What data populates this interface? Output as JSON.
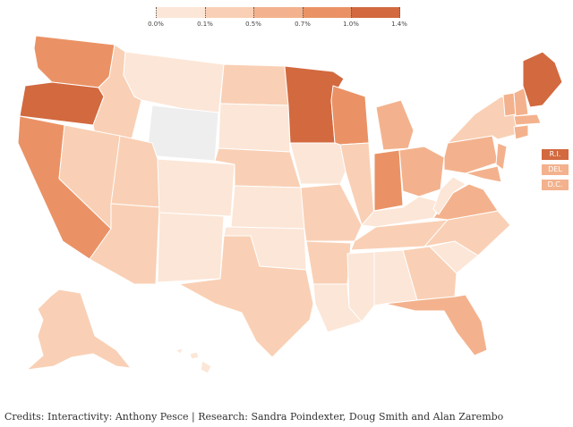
{
  "colors": {
    "no_data": "#eeeeee",
    "bins": [
      "#fce6d7",
      "#f9d0b5",
      "#f3b28d",
      "#ea9265",
      "#d2693f"
    ]
  },
  "legend": {
    "bins": [
      "0.0%",
      "0.1%",
      "0.5%",
      "0.7%",
      "1.0%",
      "1.4%"
    ]
  },
  "small_states": [
    {
      "label": "R.I.",
      "bin": 4
    },
    {
      "label": "DEL",
      "bin": 2
    },
    {
      "label": "D.C.",
      "bin": 2
    }
  ],
  "states": [
    {
      "id": "WA",
      "bin": 3
    },
    {
      "id": "OR",
      "bin": 4
    },
    {
      "id": "CA",
      "bin": 3
    },
    {
      "id": "ID",
      "bin": 1
    },
    {
      "id": "NV",
      "bin": 1
    },
    {
      "id": "MT",
      "bin": 0
    },
    {
      "id": "WY",
      "bin": -1
    },
    {
      "id": "UT",
      "bin": 1
    },
    {
      "id": "AZ",
      "bin": 1
    },
    {
      "id": "CO",
      "bin": 0
    },
    {
      "id": "NM",
      "bin": 0
    },
    {
      "id": "ND",
      "bin": 1
    },
    {
      "id": "SD",
      "bin": 0
    },
    {
      "id": "NE",
      "bin": 1
    },
    {
      "id": "KS",
      "bin": 0
    },
    {
      "id": "OK",
      "bin": 0
    },
    {
      "id": "TX",
      "bin": 1
    },
    {
      "id": "MN",
      "bin": 4
    },
    {
      "id": "IA",
      "bin": 0
    },
    {
      "id": "MO",
      "bin": 1
    },
    {
      "id": "AR",
      "bin": 1
    },
    {
      "id": "LA",
      "bin": 0
    },
    {
      "id": "WI",
      "bin": 3
    },
    {
      "id": "IL",
      "bin": 1
    },
    {
      "id": "MI",
      "bin": 2
    },
    {
      "id": "IN",
      "bin": 3
    },
    {
      "id": "OH",
      "bin": 2
    },
    {
      "id": "KY",
      "bin": 0
    },
    {
      "id": "TN",
      "bin": 1
    },
    {
      "id": "MS",
      "bin": 0
    },
    {
      "id": "AL",
      "bin": 0
    },
    {
      "id": "GA",
      "bin": 1
    },
    {
      "id": "FL",
      "bin": 2
    },
    {
      "id": "SC",
      "bin": 0
    },
    {
      "id": "NC",
      "bin": 1
    },
    {
      "id": "VA",
      "bin": 2
    },
    {
      "id": "WV",
      "bin": 0
    },
    {
      "id": "PA",
      "bin": 2
    },
    {
      "id": "NY",
      "bin": 1
    },
    {
      "id": "VT",
      "bin": 2
    },
    {
      "id": "NH",
      "bin": 2
    },
    {
      "id": "ME",
      "bin": 4
    },
    {
      "id": "MA",
      "bin": 2
    },
    {
      "id": "CT",
      "bin": 2
    },
    {
      "id": "NJ",
      "bin": 2
    },
    {
      "id": "MD",
      "bin": 2
    },
    {
      "id": "AK",
      "bin": 1
    },
    {
      "id": "HI",
      "bin": 0
    }
  ],
  "credits": "Credits: Interactivity: Anthony Pesce | Research: Sandra Poindexter, Doug Smith and Alan Zarembo"
}
